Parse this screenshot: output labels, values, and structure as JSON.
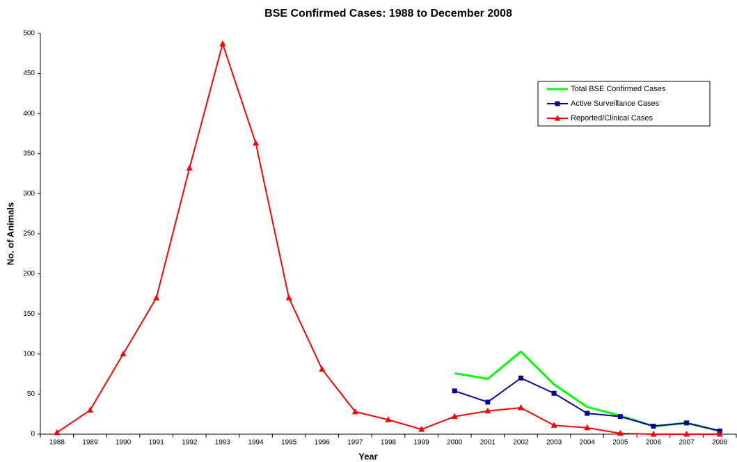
{
  "chart_data": {
    "type": "line",
    "title": "BSE Confirmed Cases: 1988 to December 2008",
    "x_label": "Year",
    "y_label": "No. of Animals",
    "categories": [
      "1988",
      "1989",
      "1990",
      "1991",
      "1992",
      "1993",
      "1994",
      "1995",
      "1996",
      "1997",
      "1998",
      "1999",
      "2000",
      "2001",
      "2002",
      "2003",
      "2004",
      "2005",
      "2006",
      "2007",
      "2008"
    ],
    "series": [
      {
        "name": "Total BSE Confirmed Cases",
        "color": "#00ff00",
        "marker": "none",
        "values": [
          null,
          null,
          null,
          null,
          null,
          null,
          null,
          null,
          null,
          null,
          null,
          null,
          76,
          69,
          103,
          62,
          34,
          23,
          10,
          14,
          4
        ]
      },
      {
        "name": "Active Surveillance Cases",
        "color": "#000099",
        "marker": "square",
        "values": [
          null,
          null,
          null,
          null,
          null,
          null,
          null,
          null,
          null,
          null,
          null,
          null,
          54,
          40,
          70,
          51,
          26,
          22,
          10,
          14,
          4
        ]
      },
      {
        "name": "Reported/Clinical Cases",
        "color": "#ff0000",
        "marker": "triangle",
        "values": [
          2,
          30,
          100,
          170,
          332,
          487,
          363,
          170,
          81,
          28,
          18,
          6,
          22,
          29,
          33,
          11,
          8,
          1,
          0,
          0,
          0
        ]
      }
    ],
    "ylim": [
      0,
      500
    ],
    "yticks": [
      0,
      50,
      100,
      150,
      200,
      250,
      300,
      350,
      400,
      450,
      500
    ],
    "grid": false,
    "legend": "upper right"
  }
}
